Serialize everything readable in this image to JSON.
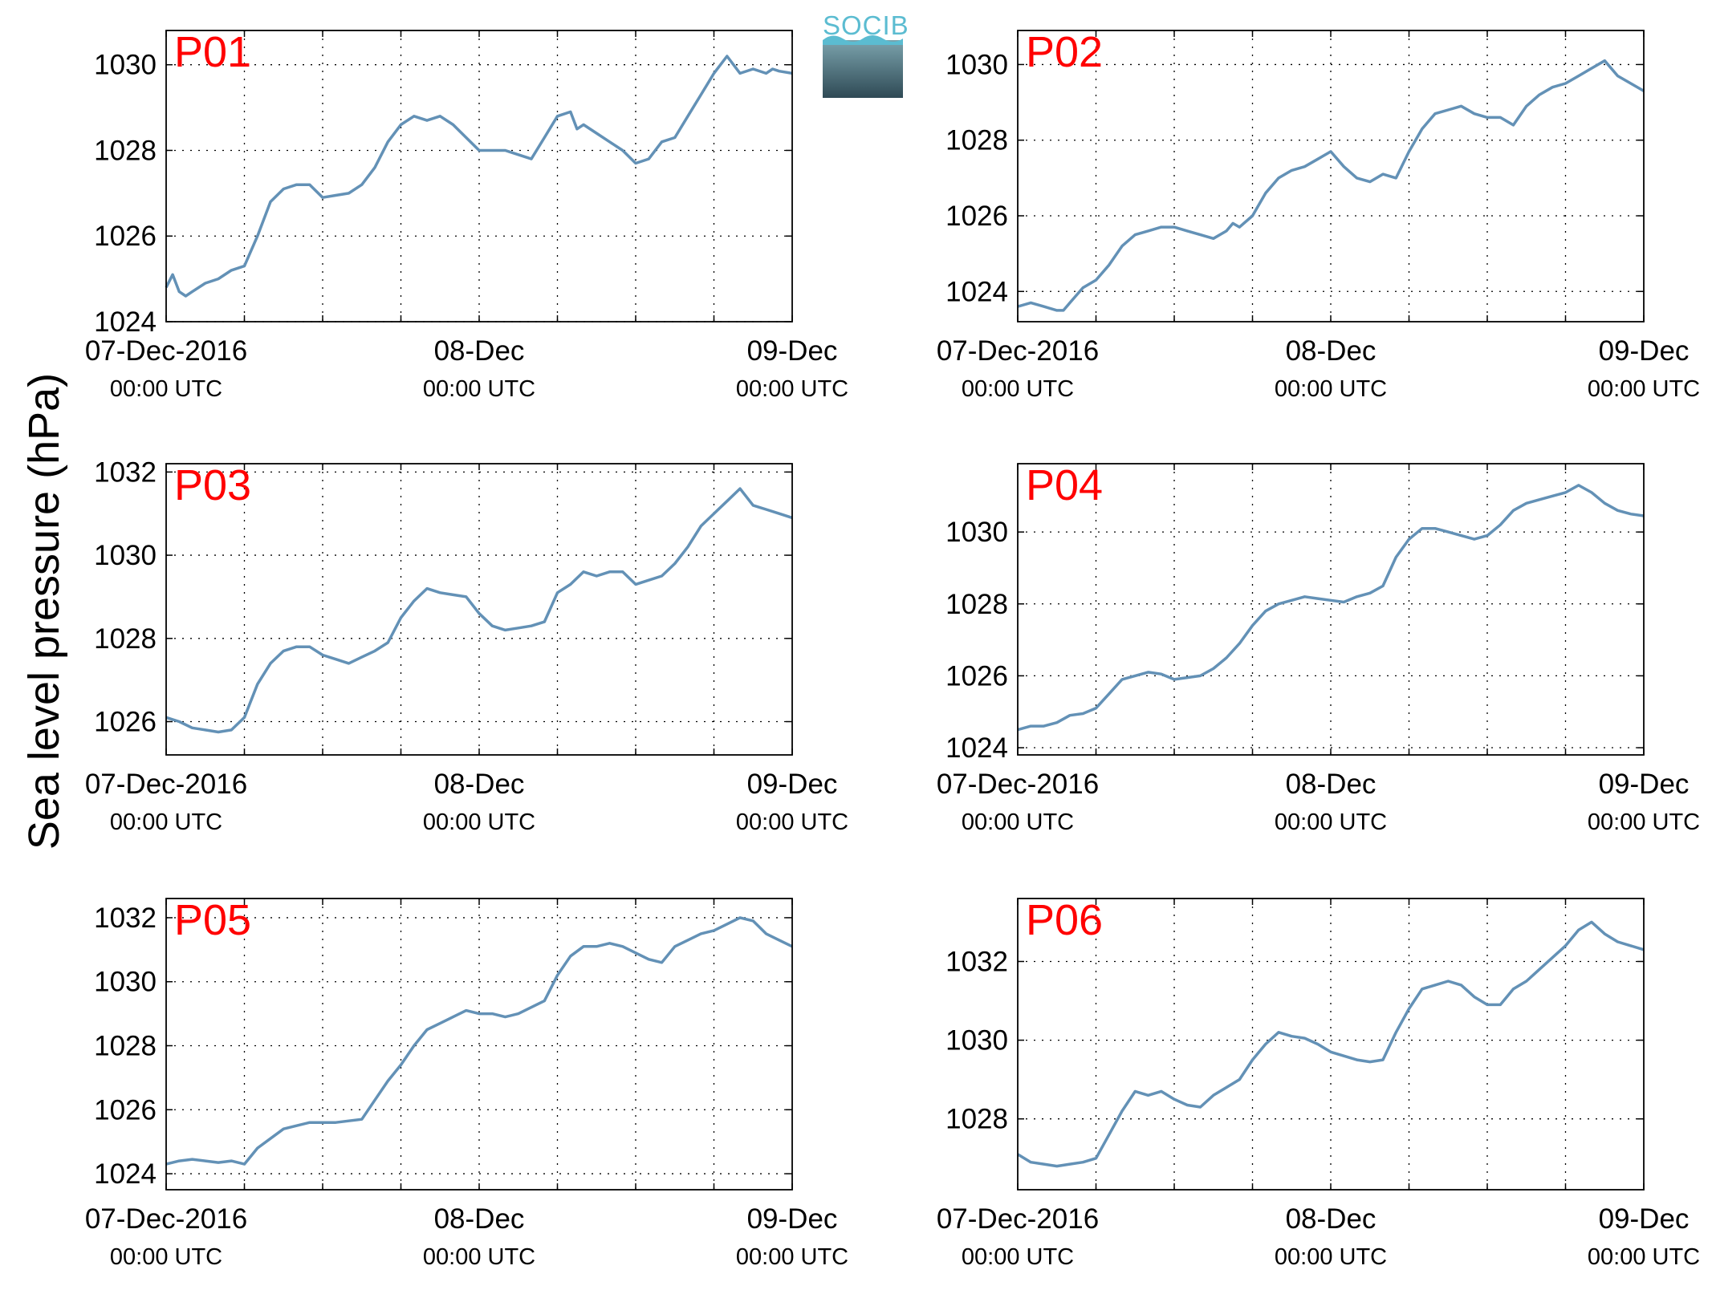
{
  "figure": {
    "ylabel": "Sea level pressure (hPa)",
    "logo_text": "SOCIB",
    "line_color": "#6391b6",
    "label_color": "#ff0000"
  },
  "chart_data": [
    {
      "type": "line",
      "title": "P01",
      "ylim": [
        1024,
        1030.8
      ],
      "yticks": [
        1024,
        1026,
        1028,
        1030
      ],
      "xlim": [
        0,
        48
      ],
      "xticks": [
        {
          "x": 0,
          "label": "07-Dec-2016",
          "sub": "00:00 UTC"
        },
        {
          "x": 24,
          "label": "08-Dec",
          "sub": "00:00 UTC"
        },
        {
          "x": 48,
          "label": "09-Dec",
          "sub": "00:00 UTC"
        }
      ],
      "grid_x": [
        0,
        6,
        12,
        18,
        24,
        30,
        36,
        42,
        48
      ],
      "grid": true,
      "series": [
        {
          "x": [
            0,
            0.5,
            1,
            1.5,
            2,
            3,
            4,
            5,
            6,
            7,
            8,
            9,
            10,
            11,
            12,
            13,
            14,
            15,
            16,
            17,
            18,
            19,
            20,
            21,
            22,
            23,
            24,
            25,
            26,
            27,
            28,
            29,
            30,
            31,
            31.5,
            32,
            33,
            34,
            35,
            36,
            37,
            38,
            39,
            40,
            41,
            42,
            43,
            44,
            45,
            46,
            46.5,
            47,
            48
          ],
          "y": [
            1024.8,
            1025.1,
            1024.7,
            1024.6,
            1024.7,
            1024.9,
            1025.0,
            1025.2,
            1025.3,
            1026.0,
            1026.8,
            1027.1,
            1027.2,
            1027.2,
            1026.9,
            1026.95,
            1027.0,
            1027.2,
            1027.6,
            1028.2,
            1028.6,
            1028.8,
            1028.7,
            1028.8,
            1028.6,
            1028.3,
            1028.0,
            1028.0,
            1028.0,
            1027.9,
            1027.8,
            1028.3,
            1028.8,
            1028.9,
            1028.5,
            1028.6,
            1028.4,
            1028.2,
            1028.0,
            1027.7,
            1027.8,
            1028.2,
            1028.3,
            1028.8,
            1029.3,
            1029.8,
            1030.2,
            1029.8,
            1029.9,
            1029.8,
            1029.9,
            1029.85,
            1029.8
          ]
        }
      ]
    },
    {
      "type": "line",
      "title": "P02",
      "ylim": [
        1023.2,
        1030.9
      ],
      "yticks": [
        1024,
        1026,
        1028,
        1030
      ],
      "xlim": [
        0,
        48
      ],
      "xticks": [
        {
          "x": 0,
          "label": "07-Dec-2016",
          "sub": "00:00 UTC"
        },
        {
          "x": 24,
          "label": "08-Dec",
          "sub": "00:00 UTC"
        },
        {
          "x": 48,
          "label": "09-Dec",
          "sub": "00:00 UTC"
        }
      ],
      "grid_x": [
        0,
        6,
        12,
        18,
        24,
        30,
        36,
        42,
        48
      ],
      "grid": true,
      "series": [
        {
          "x": [
            0,
            1,
            2,
            3,
            3.5,
            4,
            5,
            6,
            7,
            8,
            9,
            10,
            11,
            12,
            13,
            14,
            15,
            16,
            16.5,
            17,
            18,
            19,
            20,
            21,
            22,
            23,
            24,
            25,
            26,
            27,
            28,
            29,
            30,
            31,
            32,
            33,
            34,
            35,
            36,
            37,
            38,
            39,
            40,
            41,
            42,
            43,
            44,
            45,
            46,
            47,
            48
          ],
          "y": [
            1023.6,
            1023.7,
            1023.6,
            1023.5,
            1023.5,
            1023.7,
            1024.1,
            1024.3,
            1024.7,
            1025.2,
            1025.5,
            1025.6,
            1025.7,
            1025.7,
            1025.6,
            1025.5,
            1025.4,
            1025.6,
            1025.8,
            1025.7,
            1026.0,
            1026.6,
            1027.0,
            1027.2,
            1027.3,
            1027.5,
            1027.7,
            1027.3,
            1027.0,
            1026.9,
            1027.1,
            1027.0,
            1027.7,
            1028.3,
            1028.7,
            1028.8,
            1028.9,
            1028.7,
            1028.6,
            1028.6,
            1028.4,
            1028.9,
            1029.2,
            1029.4,
            1029.5,
            1029.7,
            1029.9,
            1030.1,
            1029.7,
            1029.5,
            1029.3
          ]
        }
      ]
    },
    {
      "type": "line",
      "title": "P03",
      "ylim": [
        1025.2,
        1032.2
      ],
      "yticks": [
        1026,
        1028,
        1030,
        1032
      ],
      "xlim": [
        0,
        48
      ],
      "xticks": [
        {
          "x": 0,
          "label": "07-Dec-2016",
          "sub": "00:00 UTC"
        },
        {
          "x": 24,
          "label": "08-Dec",
          "sub": "00:00 UTC"
        },
        {
          "x": 48,
          "label": "09-Dec",
          "sub": "00:00 UTC"
        }
      ],
      "grid_x": [
        0,
        6,
        12,
        18,
        24,
        30,
        36,
        42,
        48
      ],
      "grid": true,
      "series": [
        {
          "x": [
            0,
            1,
            2,
            3,
            4,
            5,
            6,
            7,
            8,
            9,
            10,
            11,
            12,
            13,
            14,
            15,
            16,
            17,
            18,
            19,
            20,
            21,
            22,
            23,
            24,
            25,
            26,
            27,
            28,
            29,
            30,
            31,
            32,
            33,
            34,
            35,
            36,
            37,
            38,
            39,
            40,
            41,
            42,
            43,
            44,
            45,
            46,
            47,
            48
          ],
          "y": [
            1026.1,
            1026.0,
            1025.85,
            1025.8,
            1025.75,
            1025.8,
            1026.1,
            1026.9,
            1027.4,
            1027.7,
            1027.8,
            1027.8,
            1027.6,
            1027.5,
            1027.4,
            1027.55,
            1027.7,
            1027.9,
            1028.5,
            1028.9,
            1029.2,
            1029.1,
            1029.05,
            1029.0,
            1028.6,
            1028.3,
            1028.2,
            1028.25,
            1028.3,
            1028.4,
            1029.1,
            1029.3,
            1029.6,
            1029.5,
            1029.6,
            1029.6,
            1029.3,
            1029.4,
            1029.5,
            1029.8,
            1030.2,
            1030.7,
            1031.0,
            1031.3,
            1031.6,
            1031.2,
            1031.1,
            1031.0,
            1030.9
          ]
        }
      ]
    },
    {
      "type": "line",
      "title": "P04",
      "ylim": [
        1023.8,
        1031.9
      ],
      "yticks": [
        1024,
        1026,
        1028,
        1030
      ],
      "xlim": [
        0,
        48
      ],
      "xticks": [
        {
          "x": 0,
          "label": "07-Dec-2016",
          "sub": "00:00 UTC"
        },
        {
          "x": 24,
          "label": "08-Dec",
          "sub": "00:00 UTC"
        },
        {
          "x": 48,
          "label": "09-Dec",
          "sub": "00:00 UTC"
        }
      ],
      "grid_x": [
        0,
        6,
        12,
        18,
        24,
        30,
        36,
        42,
        48
      ],
      "grid": true,
      "series": [
        {
          "x": [
            0,
            1,
            2,
            3,
            4,
            5,
            6,
            7,
            8,
            9,
            10,
            11,
            12,
            13,
            14,
            15,
            16,
            17,
            18,
            19,
            20,
            21,
            22,
            23,
            24,
            25,
            26,
            27,
            28,
            29,
            30,
            31,
            32,
            33,
            34,
            35,
            36,
            37,
            38,
            39,
            40,
            41,
            42,
            43,
            44,
            45,
            46,
            47,
            48
          ],
          "y": [
            1024.5,
            1024.6,
            1024.6,
            1024.7,
            1024.9,
            1024.95,
            1025.1,
            1025.5,
            1025.9,
            1026.0,
            1026.1,
            1026.05,
            1025.9,
            1025.95,
            1026.0,
            1026.2,
            1026.5,
            1026.9,
            1027.4,
            1027.8,
            1028.0,
            1028.1,
            1028.2,
            1028.15,
            1028.1,
            1028.05,
            1028.2,
            1028.3,
            1028.5,
            1029.3,
            1029.8,
            1030.1,
            1030.1,
            1030.0,
            1029.9,
            1029.8,
            1029.9,
            1030.2,
            1030.6,
            1030.8,
            1030.9,
            1031.0,
            1031.1,
            1031.3,
            1031.1,
            1030.8,
            1030.6,
            1030.5,
            1030.45
          ]
        }
      ]
    },
    {
      "type": "line",
      "title": "P05",
      "ylim": [
        1023.5,
        1032.6
      ],
      "yticks": [
        1024,
        1026,
        1028,
        1030,
        1032
      ],
      "xlim": [
        0,
        48
      ],
      "xticks": [
        {
          "x": 0,
          "label": "07-Dec-2016",
          "sub": "00:00 UTC"
        },
        {
          "x": 24,
          "label": "08-Dec",
          "sub": "00:00 UTC"
        },
        {
          "x": 48,
          "label": "09-Dec",
          "sub": "00:00 UTC"
        }
      ],
      "grid_x": [
        0,
        6,
        12,
        18,
        24,
        30,
        36,
        42,
        48
      ],
      "grid": true,
      "series": [
        {
          "x": [
            0,
            1,
            2,
            3,
            4,
            5,
            6,
            7,
            8,
            9,
            10,
            11,
            12,
            13,
            14,
            15,
            16,
            17,
            18,
            19,
            20,
            21,
            22,
            23,
            24,
            25,
            26,
            27,
            28,
            29,
            30,
            31,
            32,
            33,
            34,
            35,
            36,
            37,
            38,
            39,
            40,
            41,
            42,
            43,
            44,
            45,
            46,
            47,
            48
          ],
          "y": [
            1024.3,
            1024.4,
            1024.45,
            1024.4,
            1024.35,
            1024.4,
            1024.3,
            1024.8,
            1025.1,
            1025.4,
            1025.5,
            1025.6,
            1025.6,
            1025.6,
            1025.65,
            1025.7,
            1026.3,
            1026.9,
            1027.4,
            1028.0,
            1028.5,
            1028.7,
            1028.9,
            1029.1,
            1029.0,
            1029.0,
            1028.9,
            1029.0,
            1029.2,
            1029.4,
            1030.2,
            1030.8,
            1031.1,
            1031.1,
            1031.2,
            1031.1,
            1030.9,
            1030.7,
            1030.6,
            1031.1,
            1031.3,
            1031.5,
            1031.6,
            1031.8,
            1032.0,
            1031.9,
            1031.5,
            1031.3,
            1031.1
          ]
        }
      ]
    },
    {
      "type": "line",
      "title": "P06",
      "ylim": [
        1026.2,
        1033.6
      ],
      "yticks": [
        1028,
        1030,
        1032
      ],
      "xlim": [
        0,
        48
      ],
      "xticks": [
        {
          "x": 0,
          "label": "07-Dec-2016",
          "sub": "00:00 UTC"
        },
        {
          "x": 24,
          "label": "08-Dec",
          "sub": "00:00 UTC"
        },
        {
          "x": 48,
          "label": "09-Dec",
          "sub": "00:00 UTC"
        }
      ],
      "grid_x": [
        0,
        6,
        12,
        18,
        24,
        30,
        36,
        42,
        48
      ],
      "grid": true,
      "series": [
        {
          "x": [
            0,
            1,
            2,
            3,
            4,
            5,
            6,
            7,
            8,
            9,
            10,
            11,
            12,
            13,
            14,
            15,
            16,
            17,
            18,
            19,
            20,
            21,
            22,
            23,
            24,
            25,
            26,
            27,
            28,
            29,
            30,
            31,
            32,
            33,
            34,
            35,
            36,
            37,
            38,
            39,
            40,
            41,
            42,
            43,
            44,
            45,
            46,
            47,
            48
          ],
          "y": [
            1027.1,
            1026.9,
            1026.85,
            1026.8,
            1026.85,
            1026.9,
            1027.0,
            1027.6,
            1028.2,
            1028.7,
            1028.6,
            1028.7,
            1028.5,
            1028.35,
            1028.3,
            1028.6,
            1028.8,
            1029.0,
            1029.5,
            1029.9,
            1030.2,
            1030.1,
            1030.05,
            1029.9,
            1029.7,
            1029.6,
            1029.5,
            1029.45,
            1029.5,
            1030.2,
            1030.8,
            1031.3,
            1031.4,
            1031.5,
            1031.4,
            1031.1,
            1030.9,
            1030.9,
            1031.3,
            1031.5,
            1031.8,
            1032.1,
            1032.4,
            1032.8,
            1033.0,
            1032.7,
            1032.5,
            1032.4,
            1032.3
          ]
        }
      ]
    }
  ]
}
